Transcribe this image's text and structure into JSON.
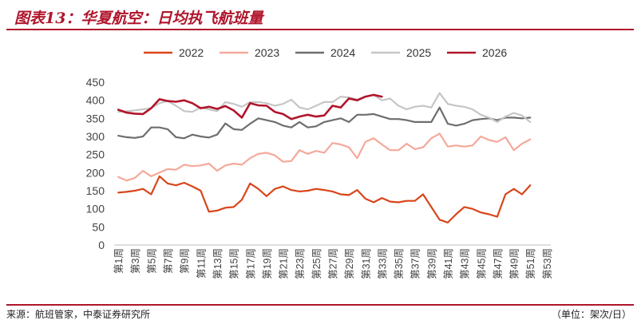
{
  "header": {
    "title": "图表13：华夏航空：日均执飞航班量",
    "accent_color": "#b0152b"
  },
  "footer": {
    "source": "来源：航班管家，中泰证券研究所",
    "unit": "（单位：架次/日）"
  },
  "chart_data": {
    "type": "line",
    "title": "",
    "xlabel": "",
    "ylabel": "",
    "ylim": [
      0,
      450
    ],
    "yticks": [
      0,
      50,
      100,
      150,
      200,
      250,
      300,
      350,
      400,
      450
    ],
    "grid": false,
    "legend_position": "top",
    "x_labels": [
      "第1周",
      "第3周",
      "第5周",
      "第7周",
      "第9周",
      "第11周",
      "第13周",
      "第15周",
      "第17周",
      "第19周",
      "第21周",
      "第23周",
      "第25周",
      "第27周",
      "第29周",
      "第31周",
      "第33周",
      "第35周",
      "第37周",
      "第39周",
      "第41周",
      "第43周",
      "第45周",
      "第47周",
      "第49周",
      "第51周",
      "第53周"
    ],
    "series": [
      {
        "name": "2022",
        "color": "#d9451a",
        "width": 2.2,
        "values": [
          145,
          147,
          150,
          155,
          140,
          190,
          170,
          165,
          172,
          162,
          150,
          92,
          95,
          103,
          105,
          125,
          170,
          155,
          135,
          155,
          162,
          152,
          148,
          150,
          155,
          152,
          148,
          140,
          138,
          152,
          128,
          118,
          130,
          120,
          118,
          122,
          122,
          140,
          105,
          70,
          62,
          85,
          105,
          100,
          90,
          85,
          78,
          140,
          155,
          140,
          165
        ]
      },
      {
        "name": "2023",
        "color": "#f4a99a",
        "width": 2.2,
        "values": [
          188,
          178,
          185,
          205,
          190,
          200,
          210,
          208,
          222,
          218,
          220,
          225,
          205,
          220,
          225,
          222,
          240,
          252,
          255,
          248,
          230,
          232,
          262,
          252,
          260,
          255,
          282,
          278,
          270,
          240,
          285,
          295,
          278,
          262,
          262,
          280,
          265,
          270,
          295,
          308,
          272,
          275,
          272,
          275,
          300,
          290,
          285,
          298,
          262,
          280,
          292
        ]
      },
      {
        "name": "2024",
        "color": "#6e6e6e",
        "width": 2.2,
        "values": [
          302,
          298,
          296,
          300,
          325,
          325,
          320,
          298,
          295,
          305,
          300,
          297,
          305,
          336,
          320,
          318,
          335,
          350,
          345,
          340,
          330,
          325,
          340,
          325,
          328,
          340,
          345,
          350,
          340,
          360,
          360,
          362,
          355,
          348,
          348,
          345,
          340,
          340,
          340,
          380,
          335,
          330,
          335,
          345,
          348,
          350,
          345,
          352,
          352,
          350,
          352
        ]
      },
      {
        "name": "2025",
        "color": "#c6c6c6",
        "width": 2.2,
        "values": [
          368,
          370,
          372,
          375,
          378,
          392,
          398,
          385,
          370,
          368,
          380,
          375,
          370,
          395,
          390,
          382,
          395,
          395,
          392,
          385,
          390,
          402,
          380,
          375,
          385,
          395,
          395,
          410,
          408,
          402,
          410,
          415,
          400,
          405,
          385,
          375,
          382,
          385,
          380,
          420,
          390,
          385,
          382,
          375,
          360,
          352,
          340,
          355,
          365,
          358,
          340
        ]
      },
      {
        "name": "2026",
        "color": "#b0152b",
        "width": 2.6,
        "values": [
          374,
          366,
          363,
          362,
          378,
          403,
          398,
          396,
          400,
          392,
          378,
          382,
          376,
          384,
          372,
          352,
          392,
          386,
          385,
          368,
          362,
          348,
          355,
          360,
          355,
          358,
          385,
          380,
          405,
          400,
          410,
          415,
          410
        ]
      }
    ]
  }
}
